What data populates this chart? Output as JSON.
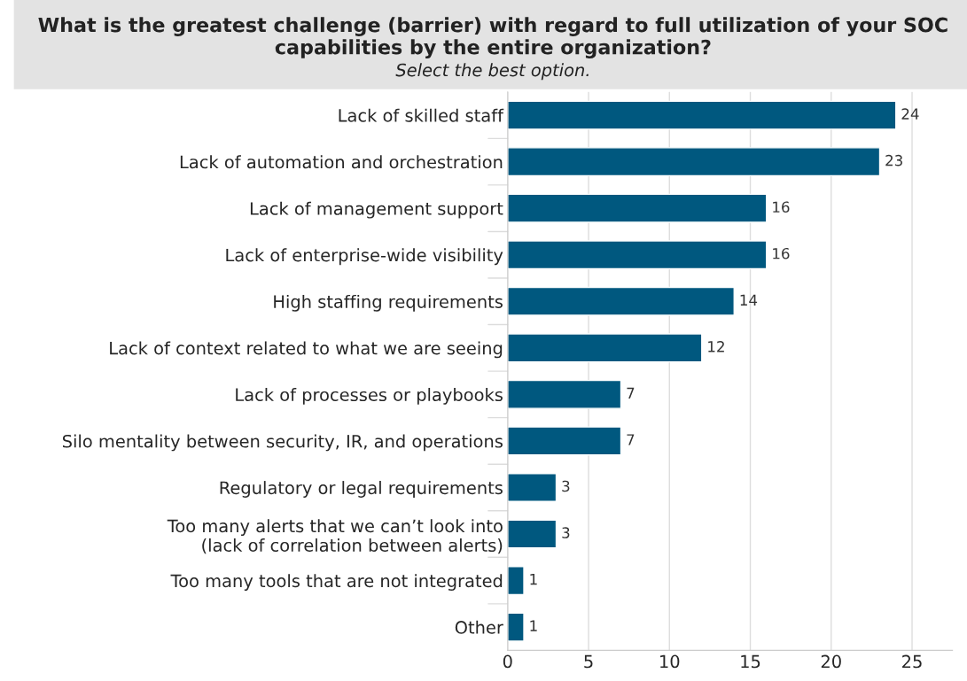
{
  "chart_data": {
    "type": "bar",
    "orientation": "horizontal",
    "title": "What is the greatest challenge (barrier) with regard to full utilization of your SOC capabilities by the entire organization?",
    "subtitle": "Select the best option.",
    "categories": [
      "Lack of skilled staff",
      "Lack of automation and orchestration",
      "Lack of management support",
      "Lack of enterprise-wide visibility",
      "High staffing requirements",
      "Lack of context related to what we are seeing",
      "Lack of processes or playbooks",
      "Silo mentality between security, IR, and operations",
      "Regulatory or legal requirements",
      "Too many alerts that we can’t look into\n(lack of correlation between alerts)",
      "Too many tools that are not integrated",
      "Other"
    ],
    "values": [
      24,
      23,
      16,
      16,
      14,
      12,
      7,
      7,
      3,
      3,
      1,
      1
    ],
    "color": "#00587f",
    "xlim": [
      0,
      27.5
    ],
    "xticks": [
      0,
      5,
      10,
      15,
      20,
      25
    ],
    "grid": "x",
    "data_labels": true
  }
}
